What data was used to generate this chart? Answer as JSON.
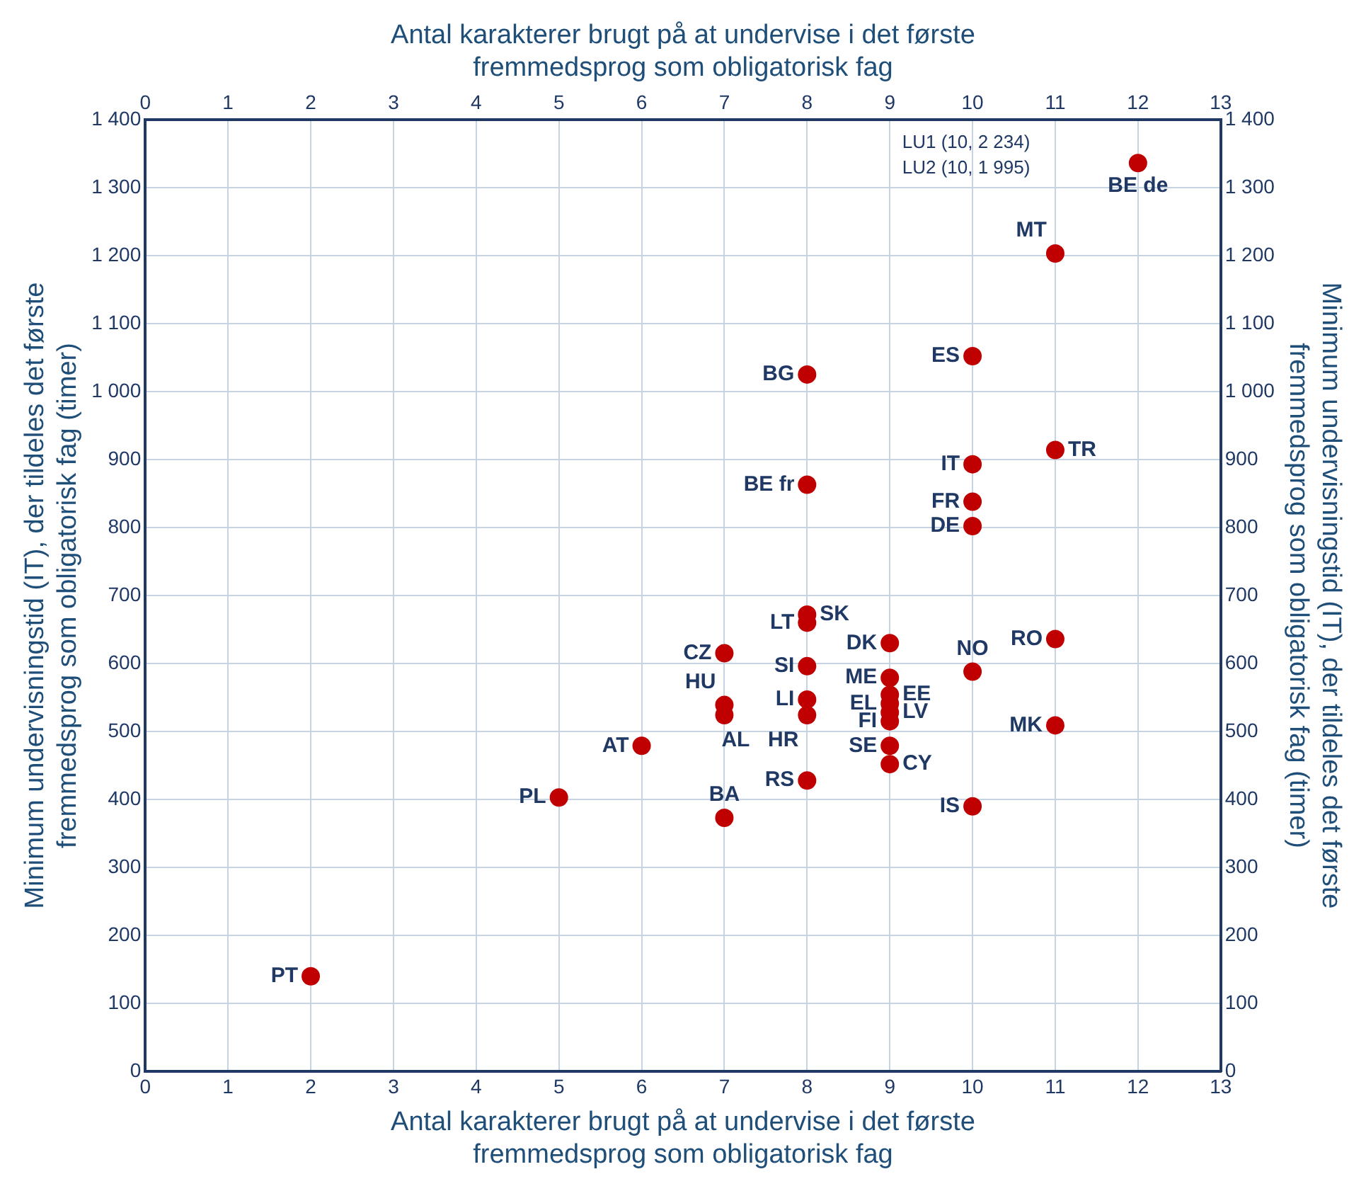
{
  "chart_data": {
    "type": "scatter",
    "xlabel": "Antal karakterer brugt på at undervise i det første fremmedsprog som obligatorisk fag",
    "x2label": "Antal karakterer brugt på at undervise i det første fremmedsprog som obligatorisk fag",
    "ylabel": "Minimum undervisningstid (IT), der tildeles det første fremmedsprog som obligatorisk fag (timer)",
    "y2label": "Minimum undervisningstid (IT), der tildeles det første fremmedsprog som obligatorisk fag (timer)",
    "xlim": [
      0,
      13
    ],
    "xticks": [
      0,
      1,
      2,
      3,
      4,
      5,
      6,
      7,
      8,
      9,
      10,
      11,
      12,
      13
    ],
    "x2lim": [
      0,
      13
    ],
    "x2ticks": [
      0,
      1,
      2,
      3,
      4,
      5,
      6,
      7,
      8,
      9,
      10,
      11,
      12,
      13
    ],
    "ylim": [
      0,
      1400
    ],
    "yticks": [
      0,
      100,
      200,
      300,
      400,
      500,
      600,
      700,
      800,
      900,
      {
        "value": 1000,
        "label": "1 000"
      },
      {
        "value": 1100,
        "label": "1 100"
      },
      {
        "value": 1200,
        "label": "1 200"
      },
      {
        "value": 1300,
        "label": "1 300"
      },
      {
        "value": 1400,
        "label": "1 400"
      }
    ],
    "y2lim": [
      0,
      1400
    ],
    "y2ticks": [
      0,
      100,
      200,
      300,
      400,
      500,
      600,
      700,
      800,
      900,
      {
        "value": 1000,
        "label": "1 000"
      },
      {
        "value": 1100,
        "label": "1 100"
      },
      {
        "value": 1200,
        "label": "1 200"
      },
      {
        "value": 1300,
        "label": "1 300"
      },
      {
        "value": 1400,
        "label": "1 400"
      }
    ],
    "grid": true,
    "legend": false,
    "marker": "circle",
    "series": [
      {
        "color": "#c00000",
        "x": [
          2,
          5,
          6,
          7,
          7,
          7,
          7,
          8,
          8,
          8,
          8,
          8,
          8,
          9,
          9,
          9,
          9,
          9,
          9,
          9,
          9,
          10,
          10,
          8,
          8,
          10,
          10,
          10,
          10,
          11,
          11,
          11,
          11,
          12
        ],
        "values": [
          140,
          403,
          479,
          373,
          615,
          539,
          524,
          672,
          660,
          596,
          547,
          524,
          428,
          630,
          579,
          554,
          541,
          528,
          515,
          479,
          452,
          588,
          390,
          1025,
          863,
          1052,
          893,
          838,
          802,
          914,
          636,
          509,
          1203,
          1336
        ]
      }
    ],
    "annotations": [
      {
        "text": "PT",
        "x": 2,
        "y": 140
      },
      {
        "text": "PL",
        "x": 5,
        "y": 403
      },
      {
        "text": "AT",
        "x": 6,
        "y": 479
      },
      {
        "text": "BA",
        "x": 7,
        "y": 373
      },
      {
        "text": "CZ",
        "x": 7,
        "y": 615
      },
      {
        "text": "HU",
        "x": 7,
        "y": 539
      },
      {
        "text": "AL",
        "x": 7,
        "y": 524
      },
      {
        "text": "LT",
        "x": 8,
        "y": 660
      },
      {
        "text": "SK",
        "x": 8,
        "y": 672
      },
      {
        "text": "SI",
        "x": 8,
        "y": 596
      },
      {
        "text": "LI",
        "x": 8,
        "y": 547
      },
      {
        "text": "HR",
        "x": 8,
        "y": 524
      },
      {
        "text": "RS",
        "x": 8,
        "y": 428
      },
      {
        "text": "DK",
        "x": 9,
        "y": 630
      },
      {
        "text": "ME",
        "x": 9,
        "y": 579
      },
      {
        "text": "EE",
        "x": 9,
        "y": 554
      },
      {
        "text": "EL",
        "x": 9,
        "y": 541
      },
      {
        "text": "LV",
        "x": 9,
        "y": 528
      },
      {
        "text": "FI",
        "x": 9,
        "y": 515
      },
      {
        "text": "SE",
        "x": 9,
        "y": 479
      },
      {
        "text": "CY",
        "x": 9,
        "y": 452
      },
      {
        "text": "NO",
        "x": 10,
        "y": 588
      },
      {
        "text": "IS",
        "x": 10,
        "y": 390
      },
      {
        "text": "BG",
        "x": 8,
        "y": 1025
      },
      {
        "text": "BE fr",
        "x": 8,
        "y": 863
      },
      {
        "text": "ES",
        "x": 10,
        "y": 1052
      },
      {
        "text": "IT",
        "x": 10,
        "y": 893
      },
      {
        "text": "FR",
        "x": 10,
        "y": 838
      },
      {
        "text": "DE",
        "x": 10,
        "y": 802
      },
      {
        "text": "TR",
        "x": 11,
        "y": 914
      },
      {
        "text": "RO",
        "x": 11,
        "y": 636
      },
      {
        "text": "MK",
        "x": 11,
        "y": 509
      },
      {
        "text": "MT",
        "x": 11,
        "y": 1203
      },
      {
        "text": "BE de",
        "x": 12,
        "y": 1336
      },
      "LU1 (10, 2 234)",
      "LU2 (10, 1 995)"
    ]
  }
}
